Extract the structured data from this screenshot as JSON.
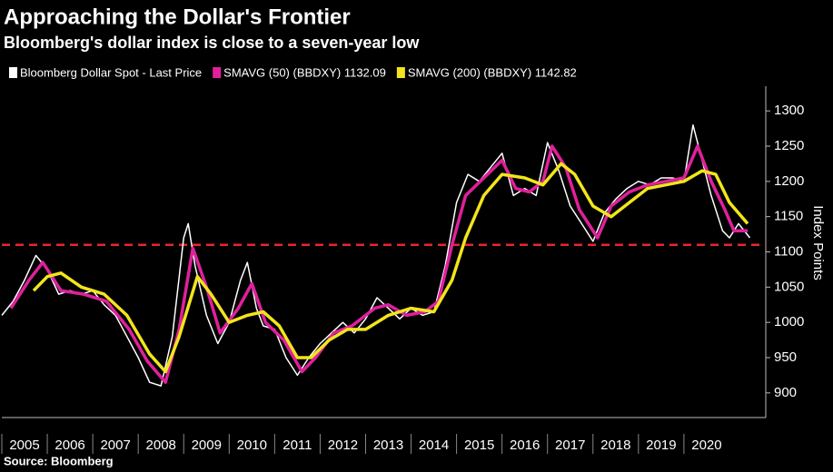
{
  "chart_data": {
    "type": "line",
    "title": "Approaching the Dollar's Frontier",
    "subtitle": "Bloomberg's dollar index is close to a seven-year low",
    "y_axis_label": "Index Points",
    "source": "Source: Bloomberg",
    "xlim": [
      2005,
      2021.8
    ],
    "xticks": [
      2005,
      2006,
      2007,
      2008,
      2009,
      2010,
      2011,
      2012,
      2013,
      2014,
      2015,
      2016,
      2017,
      2018,
      2019,
      2020
    ],
    "ylim": [
      865,
      1335
    ],
    "yticks": [
      900,
      950,
      1000,
      1050,
      1100,
      1150,
      1200,
      1250,
      1300
    ],
    "reference_line": {
      "value": 1110,
      "color": "#e8262b"
    },
    "series": [
      {
        "name": "Bloomberg Dollar Spot - Last Price",
        "color": "#ffffff",
        "x": [
          2005.0,
          2005.25,
          2005.5,
          2005.75,
          2006.0,
          2006.25,
          2006.5,
          2006.75,
          2007.0,
          2007.25,
          2007.5,
          2007.75,
          2008.0,
          2008.25,
          2008.5,
          2008.75,
          2009.0,
          2009.1,
          2009.25,
          2009.5,
          2009.75,
          2010.0,
          2010.25,
          2010.4,
          2010.6,
          2010.75,
          2011.0,
          2011.25,
          2011.5,
          2011.75,
          2012.0,
          2012.25,
          2012.5,
          2012.75,
          2013.0,
          2013.25,
          2013.5,
          2013.75,
          2014.0,
          2014.25,
          2014.5,
          2014.75,
          2015.0,
          2015.25,
          2015.5,
          2015.75,
          2016.0,
          2016.25,
          2016.5,
          2016.75,
          2017.0,
          2017.25,
          2017.5,
          2017.75,
          2018.0,
          2018.25,
          2018.5,
          2018.75,
          2019.0,
          2019.25,
          2019.5,
          2019.75,
          2020.0,
          2020.2,
          2020.4,
          2020.6,
          2020.85,
          2021.0,
          2021.2,
          2021.45
        ],
        "values": [
          1010,
          1030,
          1060,
          1095,
          1075,
          1040,
          1045,
          1040,
          1045,
          1025,
          1010,
          980,
          950,
          915,
          910,
          980,
          1120,
          1140,
          1080,
          1010,
          970,
          1000,
          1060,
          1085,
          1020,
          995,
          990,
          950,
          925,
          950,
          970,
          985,
          1000,
          985,
          1005,
          1035,
          1020,
          1005,
          1020,
          1010,
          1015,
          1080,
          1170,
          1210,
          1200,
          1220,
          1240,
          1180,
          1190,
          1180,
          1255,
          1215,
          1165,
          1140,
          1115,
          1155,
          1175,
          1190,
          1200,
          1195,
          1205,
          1205,
          1200,
          1280,
          1230,
          1180,
          1130,
          1120,
          1140,
          1120
        ]
      },
      {
        "name": "SMAVG (50) (BBDXY) 1132.09",
        "color": "#e0209c",
        "x": [
          2005.2,
          2005.6,
          2005.9,
          2006.3,
          2006.8,
          2007.3,
          2007.8,
          2008.2,
          2008.6,
          2008.9,
          2009.2,
          2009.5,
          2009.8,
          2010.2,
          2010.5,
          2010.8,
          2011.2,
          2011.6,
          2011.9,
          2012.3,
          2012.7,
          2013.2,
          2013.5,
          2013.9,
          2014.3,
          2014.6,
          2014.9,
          2015.2,
          2015.6,
          2016.0,
          2016.3,
          2016.6,
          2016.9,
          2017.1,
          2017.4,
          2017.7,
          2018.1,
          2018.4,
          2018.8,
          2019.2,
          2019.6,
          2020.0,
          2020.3,
          2020.6,
          2020.9,
          2021.1,
          2021.4
        ],
        "values": [
          1020,
          1060,
          1085,
          1045,
          1040,
          1030,
          990,
          945,
          915,
          990,
          1105,
          1050,
          985,
          1020,
          1055,
          1000,
          975,
          930,
          950,
          985,
          995,
          1020,
          1025,
          1010,
          1015,
          1030,
          1110,
          1180,
          1205,
          1230,
          1190,
          1185,
          1200,
          1250,
          1220,
          1160,
          1120,
          1165,
          1185,
          1195,
          1200,
          1205,
          1250,
          1200,
          1160,
          1130,
          1130
        ]
      },
      {
        "name": "SMAVG (200) (BBDXY) 1142.82",
        "color": "#f2e51b",
        "x": [
          2005.7,
          2006.0,
          2006.3,
          2006.75,
          2007.25,
          2007.75,
          2008.25,
          2008.6,
          2008.9,
          2009.3,
          2009.6,
          2010.0,
          2010.4,
          2010.75,
          2011.1,
          2011.5,
          2011.8,
          2012.2,
          2012.6,
          2013.0,
          2013.5,
          2014.0,
          2014.5,
          2014.9,
          2015.2,
          2015.6,
          2016.0,
          2016.5,
          2016.9,
          2017.3,
          2017.6,
          2018.0,
          2018.4,
          2018.8,
          2019.2,
          2019.6,
          2020.0,
          2020.4,
          2020.7,
          2021.0,
          2021.4
        ],
        "values": [
          1045,
          1065,
          1070,
          1050,
          1040,
          1010,
          955,
          930,
          980,
          1065,
          1040,
          1000,
          1010,
          1015,
          995,
          950,
          950,
          975,
          990,
          990,
          1010,
          1020,
          1015,
          1060,
          1120,
          1180,
          1210,
          1205,
          1195,
          1225,
          1210,
          1165,
          1150,
          1170,
          1190,
          1195,
          1200,
          1215,
          1210,
          1170,
          1140
        ]
      }
    ]
  }
}
